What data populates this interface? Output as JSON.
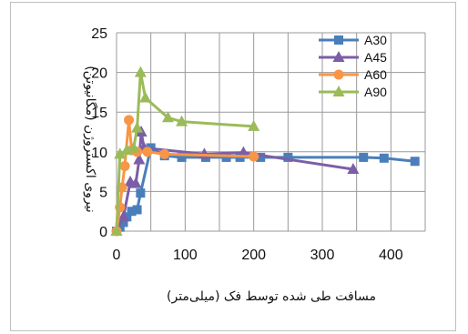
{
  "chart_data": {
    "type": "scatter",
    "title": "",
    "xlabel": "مسافت طی شده توسط فک (میلی‌متر)",
    "ylabel": "نیروی اکستروژن (مگانیوتن)",
    "xlim": [
      0,
      450
    ],
    "ylim": [
      0,
      25
    ],
    "xticks": [
      0,
      100,
      200,
      300,
      400
    ],
    "yticks": [
      0,
      5,
      10,
      15,
      20,
      25
    ],
    "grid": true,
    "legend_position": "top-right",
    "series": [
      {
        "name": "A30",
        "color": "#4a7ebb",
        "marker": "square",
        "x": [
          0,
          5,
          10,
          15,
          22,
          30,
          35,
          50,
          70,
          95,
          130,
          160,
          180,
          210,
          250,
          360,
          390,
          435
        ],
        "y": [
          0,
          0.5,
          1.1,
          1.8,
          2.5,
          2.7,
          4.8,
          10.5,
          9.5,
          9.3,
          9.3,
          9.3,
          9.3,
          9.3,
          9.3,
          9.3,
          9.2,
          8.8
        ]
      },
      {
        "name": "A45",
        "color": "#7b5ea7",
        "marker": "triangle",
        "x": [
          0,
          10,
          20,
          28,
          33,
          36,
          40,
          128,
          185,
          345
        ],
        "y": [
          0,
          1.8,
          6.2,
          6.0,
          9.0,
          12.5,
          10.5,
          9.7,
          9.9,
          7.8
        ]
      },
      {
        "name": "A60",
        "color": "#f79646",
        "marker": "circle",
        "x": [
          0,
          5,
          8,
          12,
          18,
          22,
          30,
          45,
          70,
          200
        ],
        "y": [
          0,
          3.0,
          5.5,
          8.2,
          14.0,
          10.2,
          10.0,
          10.0,
          9.7,
          9.4
        ]
      },
      {
        "name": "A90",
        "color": "#9bbb59",
        "marker": "triangle",
        "x": [
          0,
          5,
          15,
          25,
          30,
          35,
          42,
          75,
          95,
          200
        ],
        "y": [
          0,
          9.7,
          10.2,
          10.5,
          13.0,
          20.0,
          16.8,
          14.3,
          13.8,
          13.2
        ]
      }
    ]
  }
}
